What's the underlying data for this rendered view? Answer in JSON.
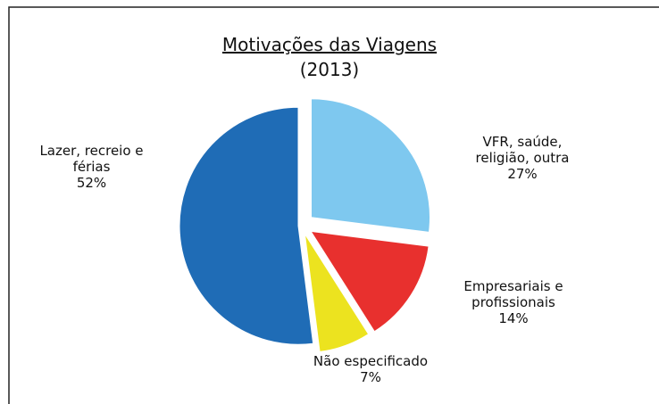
{
  "chart_data": {
    "type": "pie",
    "title": "Motivações das Viagens",
    "subtitle": "(2013)",
    "categories": [
      "VFR, saúde, religião, outra",
      "Empresariais e profissionais",
      "Não especificado",
      "Lazer, recreio e férias"
    ],
    "values": [
      27,
      14,
      7,
      52
    ],
    "value_labels": [
      "27%",
      "14%",
      "7%",
      "52%"
    ],
    "colors": [
      "#7ec8ef",
      "#e8302e",
      "#ece31f",
      "#1f6cb6"
    ]
  }
}
